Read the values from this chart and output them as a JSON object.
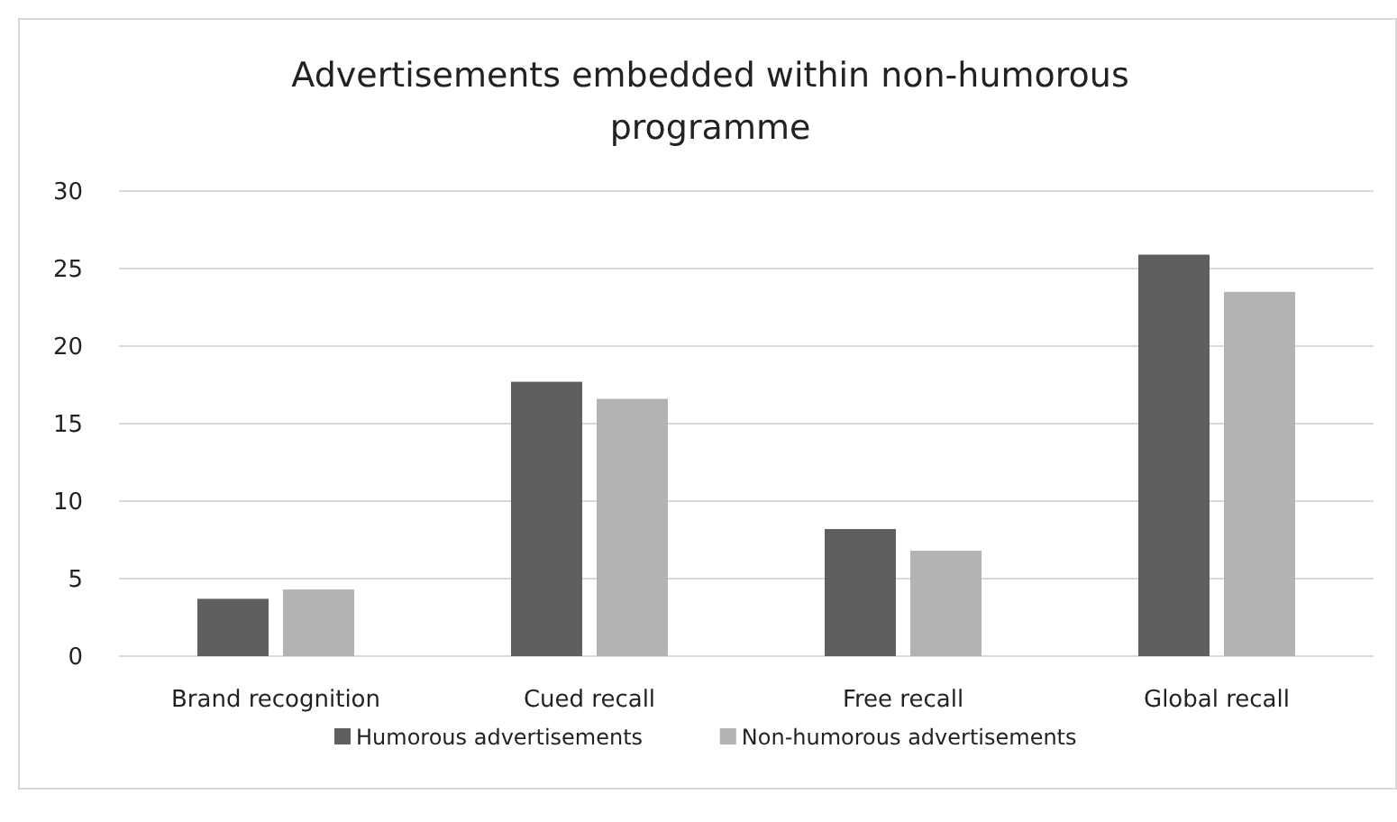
{
  "chart_data": {
    "type": "bar",
    "title": "Advertisements embedded within non-humorous programme",
    "categories": [
      "Brand recognition",
      "Cued recall",
      "Free recall",
      "Global recall"
    ],
    "series": [
      {
        "name": "Humorous advertisements",
        "color": "#5f5f5f",
        "values": [
          3.7,
          17.7,
          8.2,
          25.9
        ]
      },
      {
        "name": "Non-humorous advertisements",
        "color": "#b3b3b3",
        "values": [
          4.3,
          16.6,
          6.8,
          23.5
        ]
      }
    ],
    "ylim": [
      0,
      30
    ],
    "yticks": [
      0,
      5,
      10,
      15,
      20,
      25,
      30
    ],
    "grid": "y",
    "legend": "bottom"
  }
}
